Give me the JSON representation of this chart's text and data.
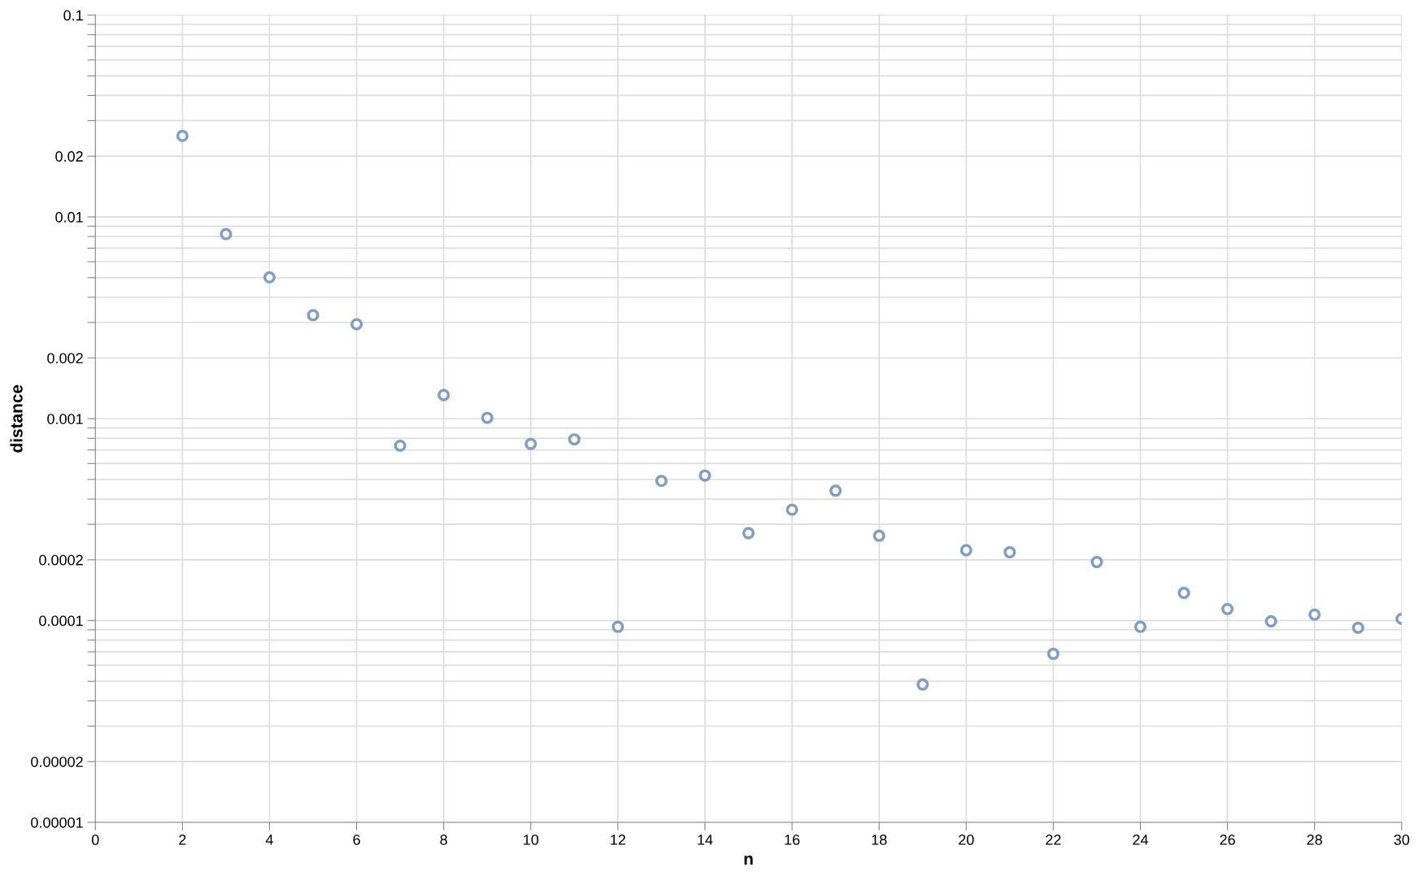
{
  "chart_data": {
    "type": "scatter",
    "xlabel": "n",
    "ylabel": "distance",
    "log": "y",
    "grid": true,
    "marker": "circle",
    "x": [
      2,
      3,
      4,
      5,
      6,
      7,
      8,
      9,
      10,
      11,
      12,
      13,
      14,
      15,
      16,
      17,
      18,
      19,
      20,
      21,
      22,
      23,
      24,
      25,
      26,
      27,
      28,
      29,
      30
    ],
    "series": [
      {
        "color": "#7f9dc5",
        "values": [
          0.0252,
          0.00822,
          0.00502,
          0.00326,
          0.00294,
          0.000735,
          0.00131,
          0.00101,
          0.00075,
          0.00079,
          9.31e-05,
          0.000492,
          0.000523,
          0.000271,
          0.000354,
          0.00044,
          0.000263,
          4.82e-05,
          0.000223,
          0.000218,
          6.84e-05,
          0.000195,
          9.31e-05,
          0.000137,
          0.000114,
          9.91e-05,
          0.000107,
          9.21e-05,
          0.000102
        ]
      }
    ],
    "xlim": [
      0,
      30
    ],
    "xticks": [
      0,
      2,
      4,
      6,
      8,
      10,
      12,
      14,
      16,
      18,
      20,
      22,
      24,
      26,
      28,
      30
    ],
    "ylim": [
      1e-05,
      0.1
    ],
    "yticks": [
      {
        "value": 1e-05,
        "label": "0.00001"
      },
      {
        "value": 2e-05,
        "label": "0.00002"
      },
      {
        "value": 3e-05,
        "label": null
      },
      {
        "value": 4e-05,
        "label": null
      },
      {
        "value": 5e-05,
        "label": null
      },
      {
        "value": 6e-05,
        "label": null
      },
      {
        "value": 7e-05,
        "label": null
      },
      {
        "value": 8e-05,
        "label": null
      },
      {
        "value": 9e-05,
        "label": null
      },
      {
        "value": 0.0001,
        "label": "0.0001"
      },
      {
        "value": 0.0002,
        "label": "0.0002"
      },
      {
        "value": 0.0003,
        "label": null
      },
      {
        "value": 0.0004,
        "label": null
      },
      {
        "value": 0.0005,
        "label": null
      },
      {
        "value": 0.0006,
        "label": null
      },
      {
        "value": 0.0007,
        "label": null
      },
      {
        "value": 0.0008,
        "label": null
      },
      {
        "value": 0.0009,
        "label": null
      },
      {
        "value": 0.001,
        "label": "0.001"
      },
      {
        "value": 0.002,
        "label": "0.002"
      },
      {
        "value": 0.003,
        "label": null
      },
      {
        "value": 0.004,
        "label": null
      },
      {
        "value": 0.005,
        "label": null
      },
      {
        "value": 0.006,
        "label": null
      },
      {
        "value": 0.007,
        "label": null
      },
      {
        "value": 0.008,
        "label": null
      },
      {
        "value": 0.009,
        "label": null
      },
      {
        "value": 0.01,
        "label": "0.01"
      },
      {
        "value": 0.02,
        "label": "0.02"
      },
      {
        "value": 0.03,
        "label": null
      },
      {
        "value": 0.04,
        "label": null
      },
      {
        "value": 0.05,
        "label": null
      },
      {
        "value": 0.06,
        "label": null
      },
      {
        "value": 0.07,
        "label": null
      },
      {
        "value": 0.08,
        "label": null
      },
      {
        "value": 0.09,
        "label": null
      },
      {
        "value": 0.1,
        "label": "0.1"
      }
    ]
  }
}
